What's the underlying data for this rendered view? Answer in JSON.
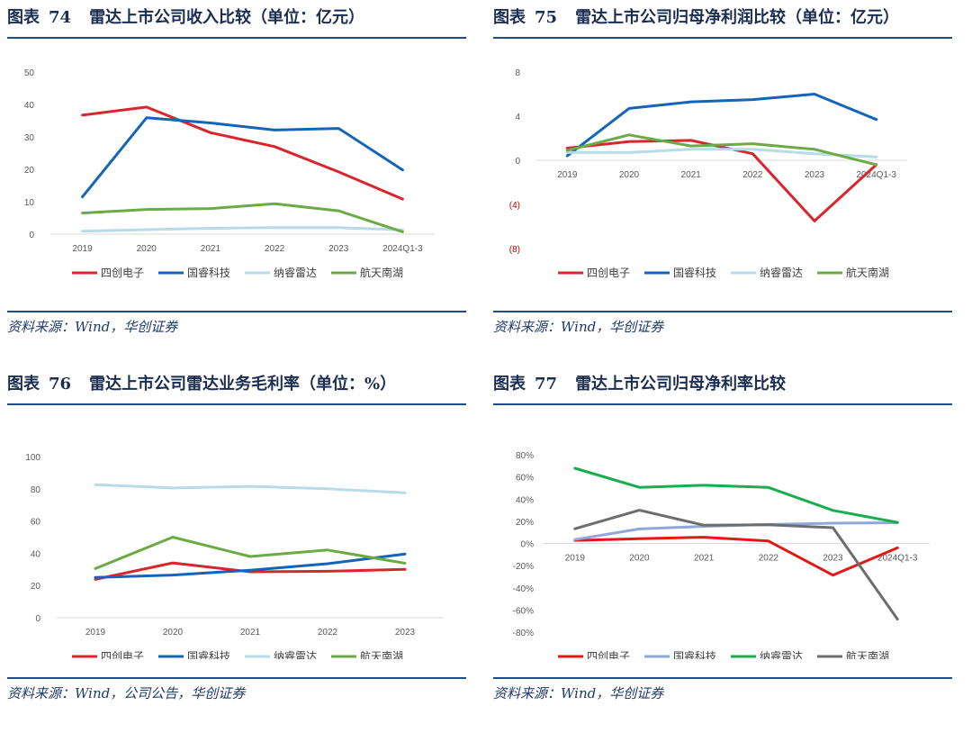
{
  "panels": [
    {
      "id": "p74",
      "title": {
        "label": "图表",
        "number": "74",
        "text": "雷达上市公司收入比较（单位：亿元）"
      },
      "source": "资料来源：Wind，华创证券"
    },
    {
      "id": "p75",
      "title": {
        "label": "图表",
        "number": "75",
        "text": "雷达上市公司归母净利润比较（单位：亿元）"
      },
      "source": "资料来源：Wind，华创证券"
    },
    {
      "id": "p76",
      "title": {
        "label": "图表",
        "number": "76",
        "text": "雷达上市公司雷达业务毛利率（单位：%）"
      },
      "source": "资料来源：Wind，公司公告，华创证券"
    },
    {
      "id": "p77",
      "title": {
        "label": "图表",
        "number": "77",
        "text": "雷达上市公司归母净利率比较"
      },
      "source": "资料来源：Wind，华创证券"
    }
  ],
  "chart_data": [
    {
      "type": "line",
      "title": "雷达上市公司收入比较（单位：亿元）",
      "categories": [
        "2019",
        "2020",
        "2021",
        "2022",
        "2023",
        "2024Q1-3"
      ],
      "ylim": [
        0,
        50
      ],
      "yticks": [
        0,
        10,
        20,
        30,
        40,
        50
      ],
      "ytick_labels": [
        "0",
        "10",
        "20",
        "30",
        "40",
        "50"
      ],
      "legend_position": "bottom",
      "grid": false,
      "series": [
        {
          "name": "四创电子",
          "color": "#d9262e",
          "values": [
            36.7,
            39.2,
            31.3,
            27.0,
            19.2,
            10.8
          ]
        },
        {
          "name": "国睿科技",
          "color": "#1465b8",
          "values": [
            11.5,
            35.9,
            34.3,
            32.1,
            32.6,
            19.8
          ]
        },
        {
          "name": "纳睿雷达",
          "color": "#b8dbe8",
          "values": [
            0.9,
            1.4,
            1.8,
            2.0,
            2.0,
            1.3
          ]
        },
        {
          "name": "航天南湖",
          "color": "#6aab46",
          "values": [
            6.5,
            7.6,
            7.9,
            9.4,
            7.2,
            0.7
          ]
        }
      ]
    },
    {
      "type": "line",
      "title": "雷达上市公司归母净利润比较（单位：亿元）",
      "categories": [
        "2019",
        "2020",
        "2021",
        "2022",
        "2023",
        "2024Q1-3"
      ],
      "ylim": [
        -8,
        8
      ],
      "yticks": [
        8,
        4,
        0,
        -4,
        -8
      ],
      "ytick_labels": [
        "8",
        "4",
        "0",
        "(4)",
        "(8)"
      ],
      "negative_tick_color": "#c00000",
      "legend_position": "bottom",
      "grid": false,
      "series": [
        {
          "name": "四创电子",
          "color": "#d9262e",
          "values": [
            1.1,
            1.7,
            1.8,
            0.6,
            -5.5,
            -0.4
          ]
        },
        {
          "name": "国睿科技",
          "color": "#1465b8",
          "values": [
            0.4,
            4.7,
            5.3,
            5.5,
            6.0,
            3.7
          ]
        },
        {
          "name": "纳睿雷达",
          "color": "#b8dbe8",
          "values": [
            0.7,
            0.7,
            1.0,
            1.0,
            0.6,
            0.3
          ]
        },
        {
          "name": "航天南湖",
          "color": "#6aab46",
          "values": [
            0.9,
            2.3,
            1.3,
            1.5,
            1.0,
            -0.4
          ]
        }
      ]
    },
    {
      "type": "line",
      "title": "雷达上市公司雷达业务毛利率（单位：%）",
      "categories": [
        "2019",
        "2020",
        "2021",
        "2022",
        "2023"
      ],
      "ylim": [
        0,
        100
      ],
      "yticks": [
        0,
        20,
        40,
        60,
        80,
        100
      ],
      "ytick_labels": [
        "0",
        "20",
        "40",
        "60",
        "80",
        "100"
      ],
      "legend_position": "bottom",
      "grid": false,
      "series": [
        {
          "name": "四创电子",
          "color": "#d9262e",
          "values": [
            23.8,
            34.0,
            28.5,
            28.8,
            30.0
          ]
        },
        {
          "name": "国睿科技",
          "color": "#1465b8",
          "values": [
            25.0,
            26.5,
            29.5,
            33.5,
            39.5
          ]
        },
        {
          "name": "纳睿雷达",
          "color": "#b8dbe8",
          "values": [
            82.5,
            80.5,
            81.5,
            80.0,
            77.5
          ]
        },
        {
          "name": "航天南湖",
          "color": "#6aab46",
          "values": [
            30.5,
            50.0,
            38.0,
            42.0,
            33.8
          ]
        }
      ]
    },
    {
      "type": "line",
      "title": "雷达上市公司归母净利率比较",
      "categories": [
        "2019",
        "2020",
        "2021",
        "2022",
        "2023",
        "2024Q1-3"
      ],
      "ylim": [
        -80,
        80
      ],
      "yticks": [
        80,
        60,
        40,
        20,
        0,
        -20,
        -40,
        -60,
        -80
      ],
      "ytick_labels": [
        "80%",
        "60%",
        "40%",
        "20%",
        "0%",
        "-20%",
        "-40%",
        "-60%",
        "-80%"
      ],
      "legend_position": "bottom",
      "grid": false,
      "series": [
        {
          "name": "四创电子",
          "color": "#e01818",
          "values": [
            2.8,
            4.3,
            5.6,
            2.2,
            -28.6,
            -4.0
          ]
        },
        {
          "name": "国睿科技",
          "color": "#8fa8dc",
          "values": [
            3.5,
            13.1,
            15.4,
            17.1,
            18.3,
            18.7
          ]
        },
        {
          "name": "纳睿雷达",
          "color": "#18ae4f",
          "values": [
            67.8,
            50.6,
            52.5,
            50.5,
            29.8,
            19.0
          ]
        },
        {
          "name": "航天南湖",
          "color": "#6d6d6d",
          "values": [
            13.2,
            30.0,
            16.4,
            16.8,
            14.2,
            -68.3
          ]
        }
      ]
    }
  ]
}
